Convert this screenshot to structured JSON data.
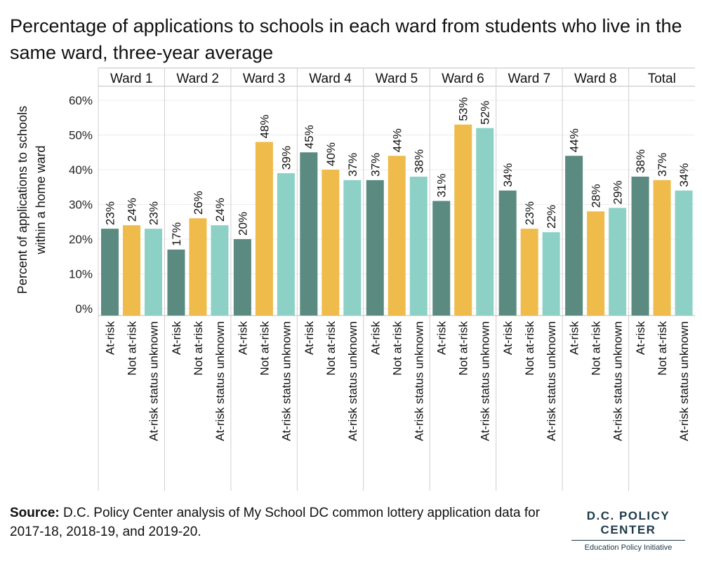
{
  "title": "Percentage of applications to schools in each ward from students who live in the same ward, three-year average",
  "source": {
    "label": "Source:",
    "text": " D.C. Policy Center analysis of My School DC common lottery application data for 2017-18, 2018-19, and 2019-20."
  },
  "logo": {
    "name": "D.C. POLICY CENTER",
    "subtitle": "Education Policy Initiative"
  },
  "chart_data": {
    "type": "bar",
    "ylabel": "Percent of applications to schools within a home ward",
    "ylabel_lines": [
      "Percent of applications to schools",
      "within a home ward"
    ],
    "ylim": [
      0,
      65
    ],
    "yticks": [
      0,
      10,
      20,
      30,
      40,
      50,
      60
    ],
    "ytick_labels": [
      "0%",
      "10%",
      "20%",
      "30%",
      "40%",
      "50%",
      "60%"
    ],
    "grid": true,
    "categories": [
      "At-risk",
      "Not at-risk",
      "At-risk status unknown"
    ],
    "colors": [
      "#5b8a80",
      "#efbb4b",
      "#8dd1c6"
    ],
    "groups": [
      {
        "name": "Ward 1",
        "values": [
          23,
          24,
          23
        ],
        "labels": [
          "23%",
          "24%",
          "23%"
        ]
      },
      {
        "name": "Ward 2",
        "values": [
          17,
          26,
          24
        ],
        "labels": [
          "17%",
          "26%",
          "24%"
        ]
      },
      {
        "name": "Ward 3",
        "values": [
          20,
          48,
          39
        ],
        "labels": [
          "20%",
          "48%",
          "39%"
        ]
      },
      {
        "name": "Ward 4",
        "values": [
          45,
          40,
          37
        ],
        "labels": [
          "45%",
          "40%",
          "37%"
        ]
      },
      {
        "name": "Ward 5",
        "values": [
          37,
          44,
          38
        ],
        "labels": [
          "37%",
          "44%",
          "38%"
        ]
      },
      {
        "name": "Ward 6",
        "values": [
          31,
          53,
          52
        ],
        "labels": [
          "31%",
          "53%",
          "52%"
        ]
      },
      {
        "name": "Ward 7",
        "values": [
          34,
          23,
          22
        ],
        "labels": [
          "34%",
          "23%",
          "22%"
        ]
      },
      {
        "name": "Ward 8",
        "values": [
          44,
          28,
          29
        ],
        "labels": [
          "44%",
          "28%",
          "29%"
        ]
      },
      {
        "name": "Total",
        "values": [
          38,
          37,
          34
        ],
        "labels": [
          "38%",
          "37%",
          "34%"
        ]
      }
    ]
  }
}
